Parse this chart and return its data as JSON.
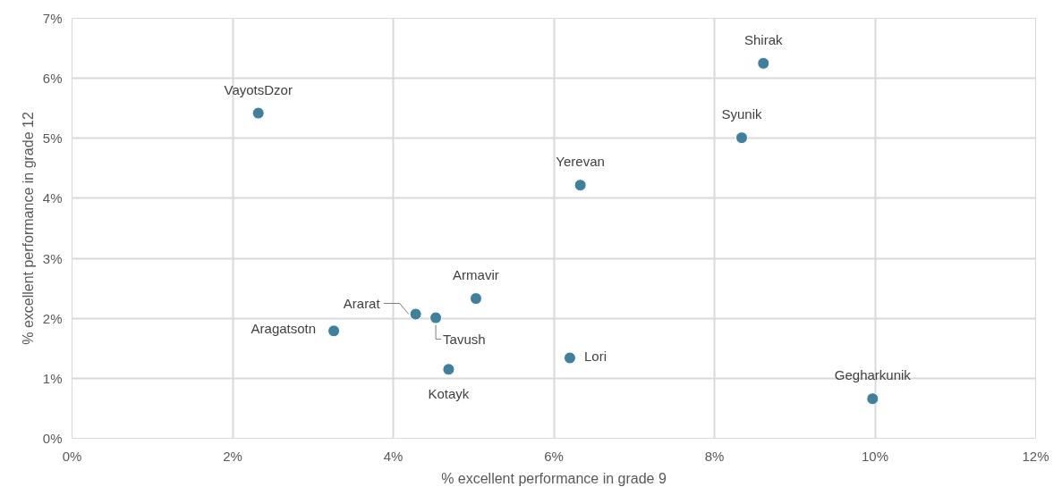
{
  "chart_data": {
    "type": "scatter",
    "xlabel": "% excellent performance in grade 9",
    "ylabel": "% excellent performance in grade 12",
    "x": [
      2.32,
      8.61,
      8.34,
      6.33,
      5.03,
      4.28,
      4.53,
      3.26,
      4.69,
      6.2,
      9.97
    ],
    "series": [
      {
        "color": "#41809c",
        "values": [
          5.42,
          6.25,
          5.01,
          4.22,
          2.33,
          2.07,
          2.01,
          1.79,
          1.15,
          1.34,
          0.66
        ]
      }
    ],
    "annotations": [
      {
        "text": "VayotsDzor",
        "x": 2.32,
        "y": 5.42
      },
      {
        "text": "Shirak",
        "x": 8.61,
        "y": 6.25
      },
      {
        "text": "Syunik",
        "x": 8.34,
        "y": 5.01
      },
      {
        "text": "Yerevan",
        "x": 6.33,
        "y": 4.22
      },
      {
        "text": "Armavir",
        "x": 5.03,
        "y": 2.33
      },
      {
        "text": "Ararat",
        "x": 4.28,
        "y": 2.07
      },
      {
        "text": "Tavush",
        "x": 4.53,
        "y": 2.01
      },
      {
        "text": "Aragatsotn",
        "x": 3.26,
        "y": 1.79
      },
      {
        "text": "Kotayk",
        "x": 4.69,
        "y": 1.15
      },
      {
        "text": "Lori",
        "x": 6.2,
        "y": 1.34
      },
      {
        "text": "Gegharkunik",
        "x": 9.97,
        "y": 0.66
      }
    ],
    "xlim": [
      0,
      12
    ],
    "ylim": [
      0,
      7
    ],
    "xticks": [
      {
        "value": 0,
        "label": "0%"
      },
      {
        "value": 2,
        "label": "2%"
      },
      {
        "value": 4,
        "label": "4%"
      },
      {
        "value": 6,
        "label": "6%"
      },
      {
        "value": 8,
        "label": "8%"
      },
      {
        "value": 10,
        "label": "10%"
      },
      {
        "value": 12,
        "label": "12%"
      }
    ],
    "yticks": [
      {
        "value": 0,
        "label": "0%"
      },
      {
        "value": 1,
        "label": "1%"
      },
      {
        "value": 2,
        "label": "2%"
      },
      {
        "value": 3,
        "label": "3%"
      },
      {
        "value": 4,
        "label": "4%"
      },
      {
        "value": 5,
        "label": "5%"
      },
      {
        "value": 6,
        "label": "6%"
      },
      {
        "value": 7,
        "label": "7%"
      }
    ],
    "grid": true,
    "marker": "circle"
  }
}
